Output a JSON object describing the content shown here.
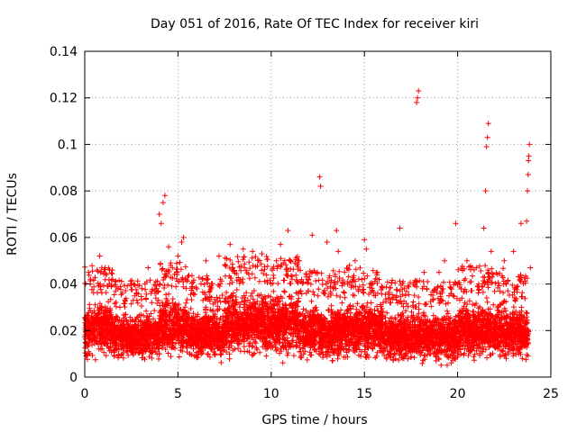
{
  "chart_data": {
    "type": "scatter",
    "title": "Day 051 of 2016, Rate Of TEC Index for receiver kiri",
    "xlabel": "GPS time / hours",
    "ylabel": "ROTI / TECUs",
    "xlim": [
      0,
      25
    ],
    "ylim": [
      0,
      0.14
    ],
    "xticks": [
      0,
      5,
      10,
      15,
      20,
      25
    ],
    "xtick_labels": [
      "0",
      "5",
      "10",
      "15",
      "20",
      "25"
    ],
    "yticks": [
      0,
      0.02,
      0.04,
      0.06,
      0.08,
      0.1,
      0.12,
      0.14
    ],
    "ytick_labels": [
      "0",
      "0.02",
      "0.04",
      "0.06",
      "0.08",
      "0.1",
      "0.12",
      "0.14"
    ],
    "grid": true,
    "marker": "plus",
    "color": "#ff0000",
    "series": [
      {
        "name": "ROTI",
        "dense_band": [
          {
            "x_start": 0.0,
            "x_end": 1.5,
            "y_min": 0.006,
            "y_max": 0.036
          },
          {
            "x_start": 1.5,
            "x_end": 4.0,
            "y_min": 0.005,
            "y_max": 0.03
          },
          {
            "x_start": 4.0,
            "x_end": 5.5,
            "y_min": 0.006,
            "y_max": 0.038
          },
          {
            "x_start": 5.5,
            "x_end": 7.5,
            "y_min": 0.005,
            "y_max": 0.032
          },
          {
            "x_start": 7.5,
            "x_end": 11.5,
            "y_min": 0.006,
            "y_max": 0.04
          },
          {
            "x_start": 11.5,
            "x_end": 14.0,
            "y_min": 0.005,
            "y_max": 0.034
          },
          {
            "x_start": 14.0,
            "x_end": 16.0,
            "y_min": 0.006,
            "y_max": 0.035
          },
          {
            "x_start": 16.0,
            "x_end": 18.5,
            "y_min": 0.005,
            "y_max": 0.03
          },
          {
            "x_start": 18.5,
            "x_end": 20.0,
            "y_min": 0.004,
            "y_max": 0.03
          },
          {
            "x_start": 20.0,
            "x_end": 22.5,
            "y_min": 0.005,
            "y_max": 0.036
          },
          {
            "x_start": 22.5,
            "x_end": 23.8,
            "y_min": 0.005,
            "y_max": 0.032
          }
        ],
        "notable_points": [
          [
            0.2,
            0.045
          ],
          [
            0.3,
            0.04
          ],
          [
            0.8,
            0.052
          ],
          [
            1.1,
            0.047
          ],
          [
            1.5,
            0.042
          ],
          [
            3.4,
            0.047
          ],
          [
            4.0,
            0.07
          ],
          [
            4.1,
            0.066
          ],
          [
            4.2,
            0.075
          ],
          [
            4.3,
            0.078
          ],
          [
            4.5,
            0.056
          ],
          [
            5.0,
            0.052
          ],
          [
            5.2,
            0.058
          ],
          [
            5.3,
            0.06
          ],
          [
            6.5,
            0.05
          ],
          [
            7.2,
            0.052
          ],
          [
            7.8,
            0.057
          ],
          [
            8.5,
            0.055
          ],
          [
            9.0,
            0.054
          ],
          [
            9.5,
            0.053
          ],
          [
            10.5,
            0.057
          ],
          [
            10.9,
            0.063
          ],
          [
            11.5,
            0.05
          ],
          [
            12.2,
            0.061
          ],
          [
            12.6,
            0.086
          ],
          [
            12.65,
            0.082
          ],
          [
            13.0,
            0.058
          ],
          [
            13.5,
            0.063
          ],
          [
            13.6,
            0.054
          ],
          [
            14.2,
            0.048
          ],
          [
            14.5,
            0.05
          ],
          [
            15.0,
            0.059
          ],
          [
            15.1,
            0.055
          ],
          [
            15.7,
            0.045
          ],
          [
            16.9,
            0.064
          ],
          [
            17.8,
            0.118
          ],
          [
            17.85,
            0.12
          ],
          [
            17.9,
            0.123
          ],
          [
            18.2,
            0.045
          ],
          [
            19.0,
            0.045
          ],
          [
            19.3,
            0.05
          ],
          [
            19.9,
            0.066
          ],
          [
            20.5,
            0.05
          ],
          [
            21.0,
            0.047
          ],
          [
            21.4,
            0.064
          ],
          [
            21.5,
            0.08
          ],
          [
            21.55,
            0.099
          ],
          [
            21.6,
            0.103
          ],
          [
            21.65,
            0.109
          ],
          [
            21.8,
            0.054
          ],
          [
            22.5,
            0.05
          ],
          [
            23.0,
            0.054
          ],
          [
            23.4,
            0.066
          ],
          [
            23.7,
            0.067
          ],
          [
            23.75,
            0.08
          ],
          [
            23.78,
            0.087
          ],
          [
            23.8,
            0.093
          ],
          [
            23.82,
            0.095
          ],
          [
            23.85,
            0.1
          ],
          [
            23.9,
            0.047
          ]
        ]
      }
    ]
  }
}
